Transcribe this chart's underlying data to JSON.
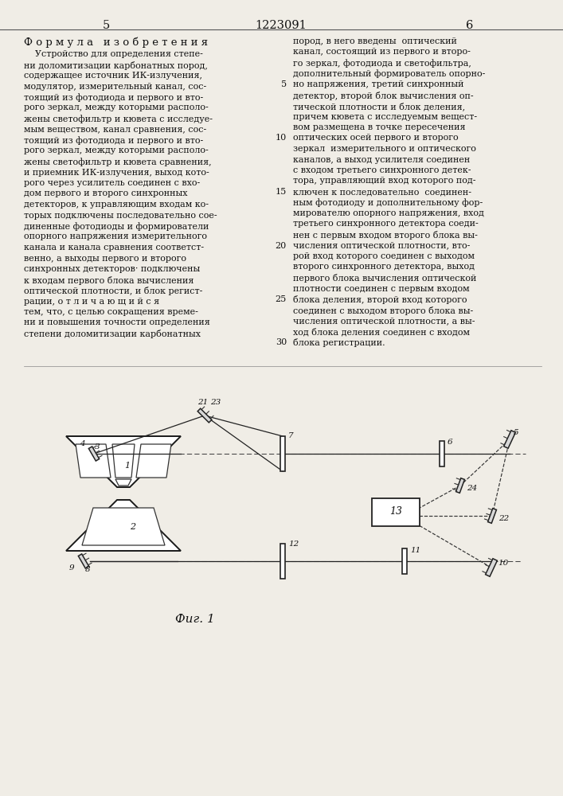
{
  "page_color": "#f0ede6",
  "text_color": "#111111",
  "page_num_left": "5",
  "page_num_center": "1223091",
  "page_num_right": "6",
  "header": "Ф о р м у л а   и з о б р е т е н и я",
  "left_col": [
    "    Устройство для определения степе-",
    "ни доломитизации карбонатных пород,",
    "содержащее источник ИК-излучения,",
    "модулятор, измерительный канал, сос-",
    "тоящий из фотодиода и первого и вто-",
    "рого зеркал, между которыми располо-",
    "жены светофильтр и кювета с исследуе-",
    "мым веществом, канал сравнения, сос-",
    "тоящий из фотодиода и первого и вто-",
    "рого зеркал, между которыми располо-",
    "жены светофильтр и кювета сравнения,",
    "и приемник ИК-излучения, выход кото-",
    "рого через усилитель соединен с вхо-",
    "дом первого и второго синхронных",
    "детекторов, к управляющим входам ко-",
    "торых подключены последовательно сое-",
    "диненные фотодиоды и формирователи",
    "опорного напряжения измерительного",
    "канала и канала сравнения соответст-",
    "венно, а выходы первого и второго",
    "синхронных детекторов· подключены",
    "к входам первого блока вычисления",
    "оптической плотности, и блок регист-",
    "рации, о т л и ч а ю щ и й с я",
    "тем, что, с целью сокращения време-",
    "ни и повышения точности определения",
    "степени доломитизации карбонатных"
  ],
  "right_col": [
    "пород, в него введены  оптический",
    "канал, состоящий из первого и второ-",
    "го зеркал, фотодиода и светофильтра,",
    "дополнительный формирователь опорно-",
    "но напряжения, третий синхронный",
    "детектор, второй блок вычисления оп-",
    "тической плотности и блок деления,",
    "причем кювета с исследуемым вещест-",
    "вом размещена в точке пересечения",
    "оптических осей первого и второго",
    "зеркал  измерительного и оптического",
    "каналов, а выход усилителя соединен",
    "с входом третьего синхронного детек-",
    "тора, управляющий вход которого под-",
    "ключен к последовательно  соединен-",
    "ным фотодиоду и дополнительному фор-",
    "мирователю опорного напряжения, вход",
    "третьего синхронного детектора соеди-",
    "нен с первым входом второго блока вы-",
    "числения оптической плотности, вто-",
    "рой вход которого соединен с выходом",
    "второго синхронного детектора, выход",
    "первого блока вычисления оптической",
    "плотности соединен с первым входом",
    "блока деления, второй вход которого",
    "соединен с выходом второго блока вы-",
    "числения оптической плотности, а вы-",
    "ход блока деления соединен с входом",
    "блока регистрации."
  ],
  "right_line_numbers": {
    "4": "5",
    "9": "10",
    "14": "15",
    "19": "20",
    "24": "25",
    "28": "30"
  },
  "fig_caption": "Фиг. 1"
}
